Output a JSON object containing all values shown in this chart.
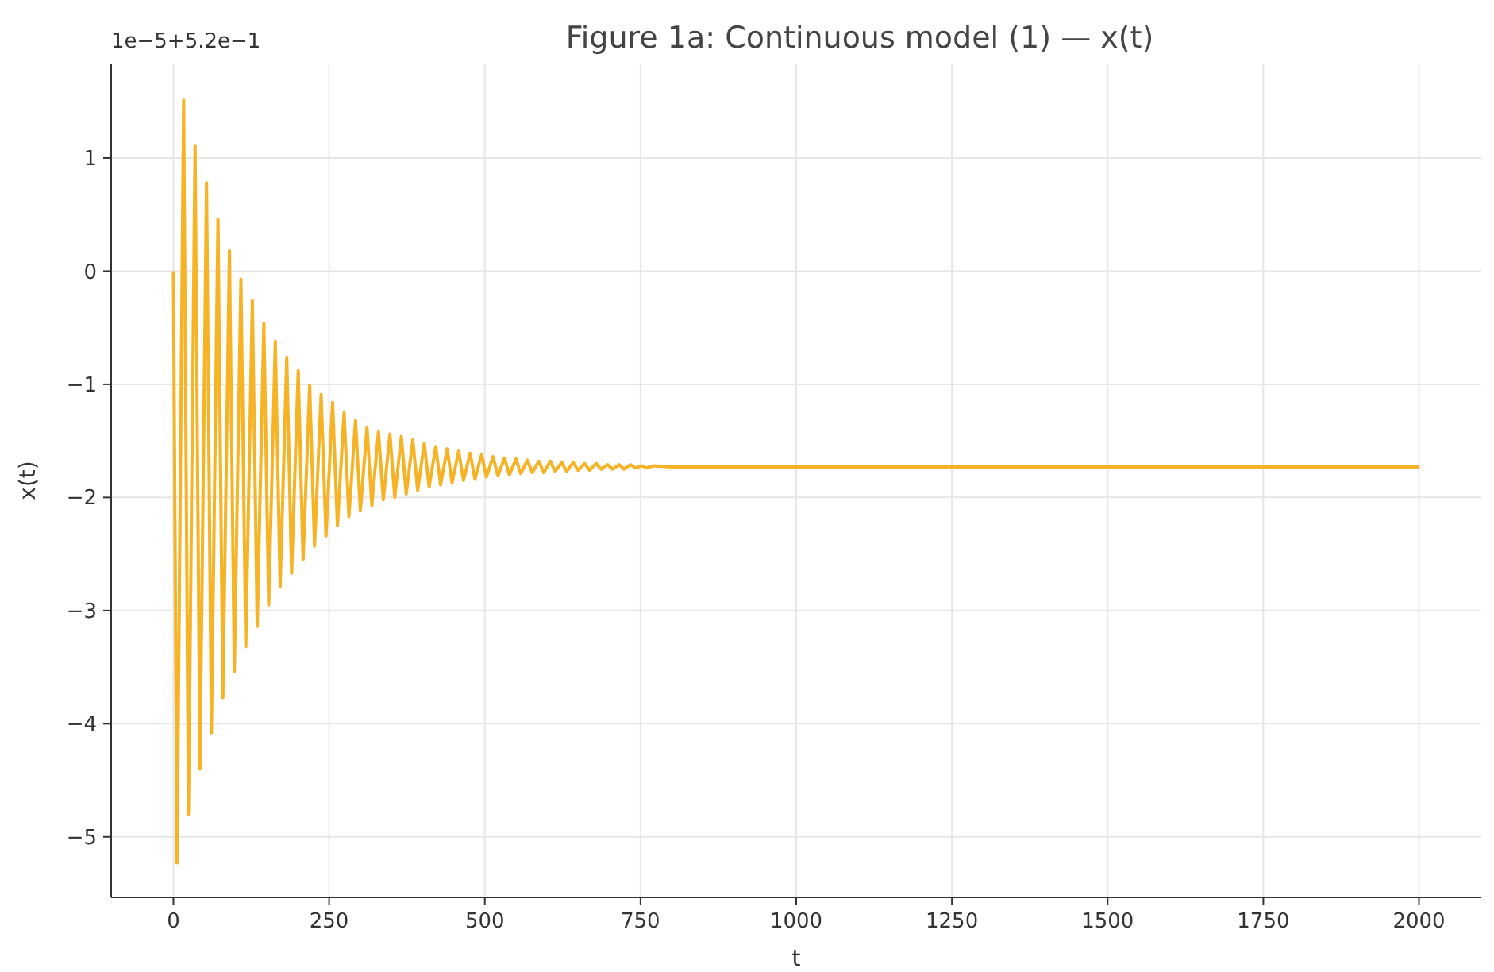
{
  "chart_data": {
    "type": "line",
    "title": "Figure 1a: Continuous model (1) — x(t)",
    "xlabel": "t",
    "ylabel": "x(t)",
    "annotations": [
      "1e−5+5.2e−1"
    ],
    "xlim": [
      -100,
      2100
    ],
    "ylim": [
      -5.535,
      1.835
    ],
    "xticks": [
      0,
      250,
      500,
      750,
      1000,
      1250,
      1500,
      1750,
      2000
    ],
    "yticks": [
      -5,
      -4,
      -3,
      -2,
      -1,
      0,
      1
    ],
    "grid": true,
    "line_style": "solid",
    "marker": "none",
    "series": [
      {
        "color": "#f5b325",
        "x": [
          0,
          5.8,
          16.4,
          24.2,
          34.8,
          42.6,
          53.2,
          61.0,
          71.6,
          79.4,
          90.0,
          97.8,
          108.4,
          116.2,
          126.8,
          134.6,
          145.2,
          153.0,
          163.6,
          171.4,
          182.0,
          189.8,
          200.4,
          208.2,
          218.8,
          226.6,
          237.2,
          245.0,
          255.6,
          263.4,
          274.0,
          281.8,
          292.4,
          300.2,
          310.8,
          318.6,
          329.2,
          337.0,
          347.6,
          355.4,
          366.0,
          373.8,
          384.4,
          392.2,
          402.8,
          410.6,
          421.2,
          429.0,
          439.6,
          447.4,
          458.0,
          465.8,
          476.4,
          484.2,
          494.8,
          502.6,
          513.2,
          521.0,
          531.6,
          539.4,
          550.0,
          557.8,
          568.4,
          576.2,
          586.8,
          594.6,
          605.2,
          613.0,
          623.6,
          631.4,
          642.0,
          649.8,
          660.4,
          668.2,
          678.8,
          686.6,
          697.2,
          705.0,
          715.6,
          723.4,
          734.0,
          741.8,
          752.4,
          760.2,
          770.8,
          800,
          2000
        ],
        "values": [
          0,
          -5.23,
          1.51,
          -4.8,
          1.11,
          -4.4,
          0.78,
          -4.08,
          0.46,
          -3.77,
          0.18,
          -3.54,
          -0.07,
          -3.32,
          -0.26,
          -3.14,
          -0.46,
          -2.95,
          -0.62,
          -2.79,
          -0.76,
          -2.67,
          -0.88,
          -2.55,
          -1.01,
          -2.43,
          -1.09,
          -2.34,
          -1.16,
          -2.25,
          -1.25,
          -2.17,
          -1.32,
          -2.12,
          -1.38,
          -2.07,
          -1.42,
          -2.02,
          -1.44,
          -2.0,
          -1.46,
          -1.97,
          -1.49,
          -1.94,
          -1.52,
          -1.91,
          -1.55,
          -1.89,
          -1.57,
          -1.87,
          -1.59,
          -1.85,
          -1.61,
          -1.84,
          -1.62,
          -1.82,
          -1.64,
          -1.81,
          -1.65,
          -1.8,
          -1.66,
          -1.79,
          -1.67,
          -1.78,
          -1.68,
          -1.78,
          -1.68,
          -1.77,
          -1.69,
          -1.77,
          -1.69,
          -1.76,
          -1.7,
          -1.76,
          -1.7,
          -1.75,
          -1.71,
          -1.75,
          -1.71,
          -1.75,
          -1.71,
          -1.74,
          -1.72,
          -1.74,
          -1.72,
          -1.73,
          -1.73
        ]
      }
    ]
  }
}
